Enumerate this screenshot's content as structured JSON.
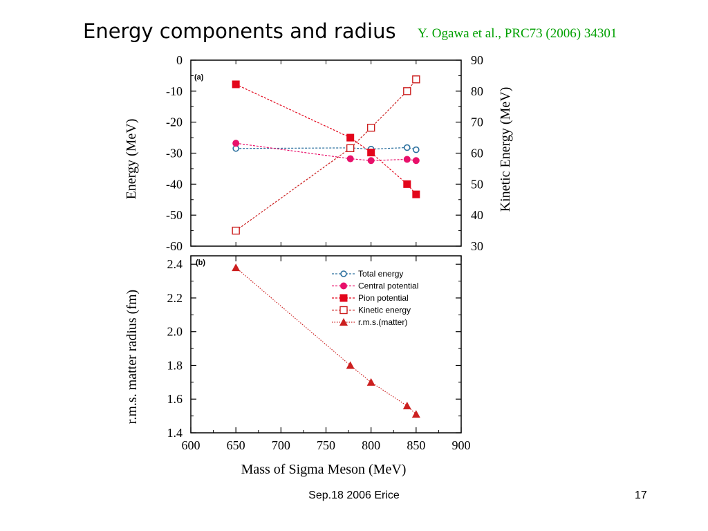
{
  "slide": {
    "title": "Energy components and radius",
    "citation": "Y. Ogawa et al., PRC73 (2006) 34301",
    "footer_left": "Sep.18 2006 Erice",
    "page_number": "17"
  },
  "colors": {
    "total_energy": "#2a6f9e",
    "central_potential": "#e8106a",
    "pion_potential": "#e3061b",
    "kinetic_energy": "#cc1f1f",
    "rms_matter": "#cc1f1f",
    "citation": "#00a000"
  },
  "chart_data": [
    {
      "type": "line",
      "panel_label": "(a)",
      "x": [
        650,
        777,
        800,
        840,
        850
      ],
      "xlim": [
        600,
        900
      ],
      "ylabel": "Energy  (MeV)",
      "ylim": [
        -60,
        0
      ],
      "yticks": [
        0,
        -10,
        -20,
        -30,
        -40,
        -50,
        -60
      ],
      "y2label": "Kinetic Energy  (MeV)",
      "y2lim": [
        30,
        90
      ],
      "y2ticks": [
        90,
        80,
        70,
        60,
        50,
        40,
        30
      ],
      "series": [
        {
          "name": "Total energy",
          "axis": "left",
          "marker": "open-circle",
          "values": [
            -28.5,
            -28.3,
            -28.7,
            -28.2,
            -28.9
          ]
        },
        {
          "name": "Central potential",
          "axis": "left",
          "marker": "filled-circle",
          "values": [
            -26.8,
            -31.8,
            -32.4,
            -32.0,
            -32.4
          ]
        },
        {
          "name": "Pion potential",
          "axis": "left",
          "marker": "filled-square",
          "values": [
            -7.8,
            -25.0,
            -29.8,
            -40.0,
            -43.3
          ]
        },
        {
          "name": "Kinetic energy",
          "axis": "right",
          "marker": "open-square",
          "values": [
            35.0,
            61.6,
            68.2,
            80.0,
            83.8
          ]
        }
      ]
    },
    {
      "type": "line",
      "panel_label": "(b)",
      "x": [
        650,
        777,
        800,
        840,
        850
      ],
      "xlabel": "Mass of Sigma Meson (MeV)",
      "xlim": [
        600,
        900
      ],
      "xticks": [
        600,
        650,
        700,
        750,
        800,
        850,
        900
      ],
      "ylabel": "r.m.s. matter radius (fm)",
      "ylim": [
        1.4,
        2.45
      ],
      "yticks": [
        "2.4",
        "2.2",
        "2.0",
        "1.8",
        "1.6",
        "1.4"
      ],
      "legend_position": "top-right",
      "series": [
        {
          "name": "r.m.s.(matter)",
          "marker": "filled-triangle",
          "values": [
            2.38,
            1.8,
            1.7,
            1.56,
            1.51
          ]
        }
      ]
    }
  ]
}
